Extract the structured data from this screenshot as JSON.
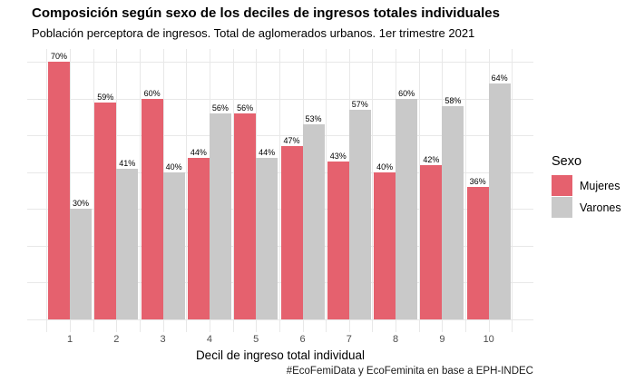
{
  "title": "Composición según sexo de los deciles de ingresos totales individuales",
  "subtitle": "Población perceptora de ingresos. Total de aglomerados urbanos. 1er trimestre 2021",
  "caption": "#EcoFemiData y EcoFeminita en base a EPH-INDEC",
  "chart_data": {
    "type": "bar",
    "subtype": "grouped-vertical",
    "categories": [
      "1",
      "2",
      "3",
      "4",
      "5",
      "6",
      "7",
      "8",
      "9",
      "10"
    ],
    "series": [
      {
        "name": "Mujeres",
        "color": "#E5616E",
        "values": [
          70,
          59,
          60,
          44,
          56,
          47,
          43,
          40,
          42,
          36
        ]
      },
      {
        "name": "Varones",
        "color": "#C9C9C9",
        "values": [
          30,
          41,
          40,
          56,
          44,
          53,
          57,
          60,
          58,
          64
        ]
      }
    ],
    "value_suffix": "%",
    "value_labels_shown": true,
    "title": "Composición según sexo de los deciles de ingresos totales individuales",
    "subtitle": "Población perceptora de ingresos. Total de aglomerados urbanos. 1er trimestre 2021",
    "xlabel": "Decil de ingreso total individual",
    "ylabel": "",
    "ylim": [
      0,
      70
    ],
    "y_gridline_step": 10,
    "y_axis_labels_shown": false,
    "grid": true,
    "grid_color": "#e8e8e8",
    "legend_title": "Sexo",
    "legend_position": "right",
    "background_color": "#ffffff"
  }
}
